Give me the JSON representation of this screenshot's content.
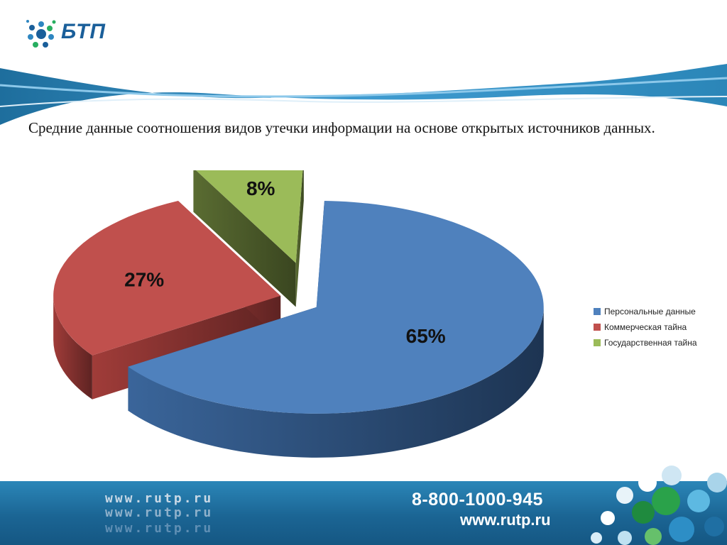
{
  "logo": {
    "text": "БТП"
  },
  "heading": {
    "text": "Средние данные соотношения видов утечки информации на основе открытых источников данных."
  },
  "footer": {
    "phone": "8-800-1000-945",
    "site": "www.rutp.ru",
    "deco_lines": [
      "www.rutp.ru",
      "www.rutp.ru",
      "www.rutp.ru"
    ]
  },
  "colors": {
    "blue": "#4f81bd",
    "red": "#c0504d",
    "green": "#9bbb59",
    "footer": "#1e6e9d"
  },
  "chart_data": {
    "type": "pie",
    "title": "",
    "categories": [
      "Персональные данные",
      "Коммерческая тайна",
      "Государственная тайна"
    ],
    "values": [
      65,
      27,
      8
    ],
    "labels": [
      "65%",
      "27%",
      "8%"
    ],
    "units": "%",
    "legend_position": "right",
    "exploded": true,
    "three_d": true,
    "colors": [
      "#4f81bd",
      "#c0504d",
      "#9bbb59"
    ]
  }
}
